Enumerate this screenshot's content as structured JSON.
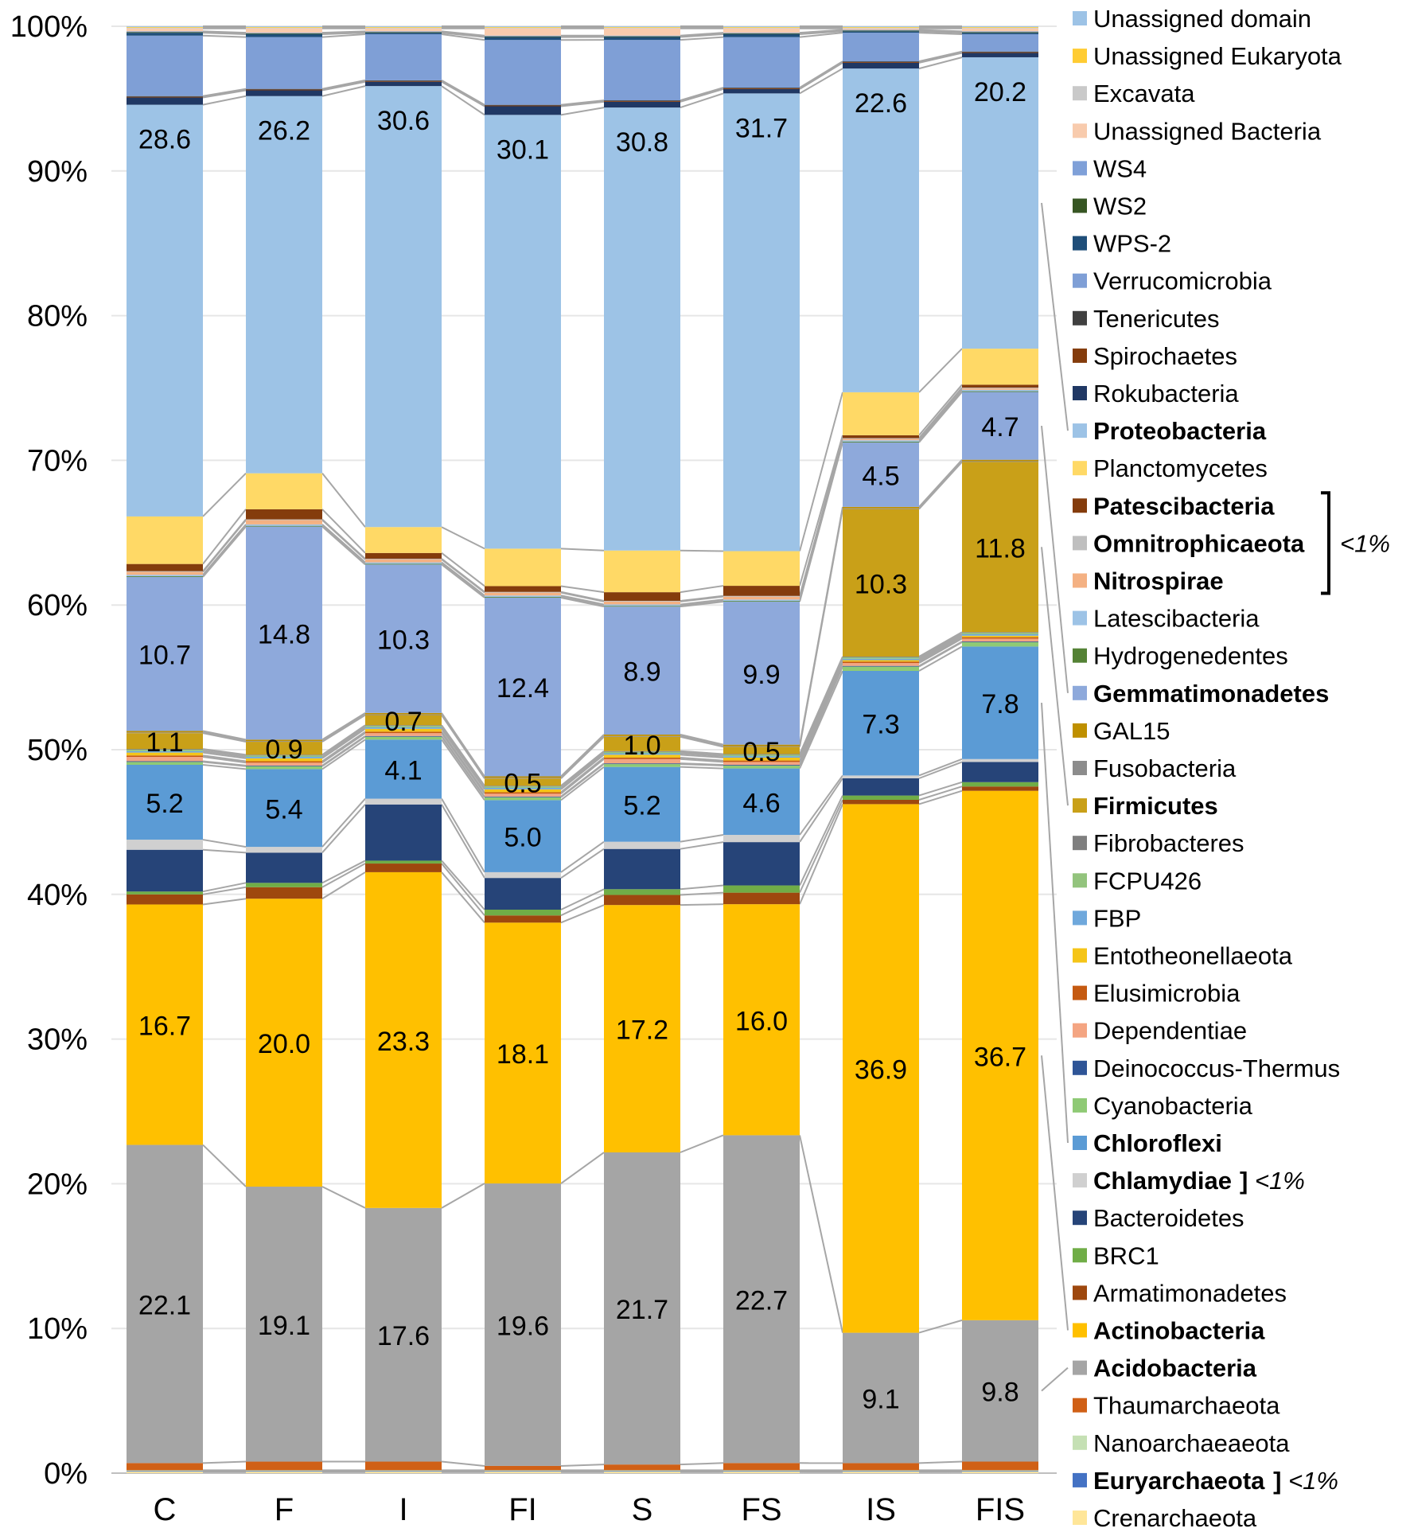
{
  "chart_data": {
    "type": "stacked-bar",
    "title": "",
    "xlabel": "",
    "ylabel": "",
    "ylim": [
      0,
      100
    ],
    "y_ticks": [
      "0%",
      "10%",
      "20%",
      "30%",
      "40%",
      "50%",
      "60%",
      "70%",
      "80%",
      "90%",
      "100%"
    ],
    "categories": [
      "C",
      "F",
      "I",
      "FI",
      "S",
      "FS",
      "IS",
      "FIS"
    ],
    "series": [
      {
        "name": "Crenarchaeota",
        "color": "#FFE699",
        "bold": false,
        "values": [
          0.1,
          0.1,
          0.1,
          0.1,
          0.1,
          0.1,
          0.1,
          0.1
        ]
      },
      {
        "name": "Euryarchaeota",
        "color": "#4472C4",
        "bold": true,
        "values": [
          0.05,
          0.05,
          0.05,
          0.05,
          0.05,
          0.05,
          0.05,
          0.05
        ]
      },
      {
        "name": "Nanoarchaeaeota",
        "color": "#C5E0B4",
        "bold": false,
        "values": [
          0.05,
          0.05,
          0.05,
          0.05,
          0.05,
          0.05,
          0.05,
          0.05
        ]
      },
      {
        "name": "Thaumarchaeota",
        "color": "#D06016",
        "bold": false,
        "values": [
          0.5,
          0.6,
          0.6,
          0.3,
          0.4,
          0.5,
          0.5,
          0.6
        ]
      },
      {
        "name": "Acidobacteria",
        "color": "#A5A5A5",
        "bold": true,
        "values": [
          22.1,
          19.1,
          17.6,
          19.6,
          21.7,
          22.7,
          9.1,
          9.8
        ]
      },
      {
        "name": "Actinobacteria",
        "color": "#FFC000",
        "bold": true,
        "values": [
          16.7,
          20.0,
          23.3,
          18.1,
          17.2,
          16.0,
          36.9,
          36.7
        ]
      },
      {
        "name": "Armatimonadetes",
        "color": "#9E480E",
        "bold": false,
        "values": [
          0.7,
          0.8,
          0.6,
          0.5,
          0.7,
          0.8,
          0.3,
          0.3
        ]
      },
      {
        "name": "BRC1",
        "color": "#70AD47",
        "bold": false,
        "values": [
          0.2,
          0.3,
          0.2,
          0.4,
          0.4,
          0.5,
          0.3,
          0.3
        ]
      },
      {
        "name": "Bacteroidetes",
        "color": "#264478",
        "bold": false,
        "values": [
          2.9,
          2.1,
          3.9,
          2.2,
          2.8,
          3.0,
          1.2,
          1.4
        ]
      },
      {
        "name": "Chlamydiae",
        "color": "#D0D0D0",
        "bold": true,
        "values": [
          0.7,
          0.4,
          0.4,
          0.4,
          0.5,
          0.5,
          0.2,
          0.2
        ]
      },
      {
        "name": "Chloroflexi",
        "color": "#5B9BD5",
        "bold": true,
        "values": [
          5.2,
          5.4,
          4.1,
          5.0,
          5.2,
          4.6,
          7.3,
          7.8
        ]
      },
      {
        "name": "Cyanobacteria",
        "color": "#8FCA75",
        "bold": false,
        "values": [
          0.2,
          0.2,
          0.2,
          0.2,
          0.2,
          0.2,
          0.3,
          0.3
        ]
      },
      {
        "name": "Deinococcus-Thermus",
        "color": "#2F5597",
        "bold": false,
        "values": [
          0.05,
          0.05,
          0.05,
          0.05,
          0.05,
          0.05,
          0.05,
          0.05
        ]
      },
      {
        "name": "Dependentiae",
        "color": "#F4A582",
        "bold": false,
        "values": [
          0.3,
          0.2,
          0.2,
          0.2,
          0.3,
          0.2,
          0.2,
          0.2
        ]
      },
      {
        "name": "Elusimicrobia",
        "color": "#C55A11",
        "bold": false,
        "values": [
          0.1,
          0.1,
          0.1,
          0.1,
          0.1,
          0.1,
          0.1,
          0.1
        ]
      },
      {
        "name": "Entotheonellaeota",
        "color": "#F5C518",
        "bold": false,
        "values": [
          0.2,
          0.2,
          0.2,
          0.2,
          0.2,
          0.2,
          0.1,
          0.1
        ]
      },
      {
        "name": "FBP",
        "color": "#6FA8DC",
        "bold": false,
        "values": [
          0.1,
          0.1,
          0.1,
          0.1,
          0.1,
          0.1,
          0.1,
          0.1
        ]
      },
      {
        "name": "FCPU426",
        "color": "#93C47D",
        "bold": false,
        "values": [
          0.1,
          0.1,
          0.1,
          0.1,
          0.1,
          0.1,
          0.1,
          0.1
        ]
      },
      {
        "name": "Fibrobacteres",
        "color": "#7F7F7F",
        "bold": false,
        "values": [
          0.05,
          0.05,
          0.05,
          0.05,
          0.05,
          0.05,
          0.05,
          0.05
        ]
      },
      {
        "name": "Firmicutes",
        "color": "#C9A018",
        "bold": true,
        "values": [
          1.1,
          0.9,
          0.7,
          0.5,
          1.0,
          0.5,
          10.3,
          11.8
        ]
      },
      {
        "name": "Fusobacteria",
        "color": "#8C8C8C",
        "bold": false,
        "values": [
          0.05,
          0.05,
          0.05,
          0.05,
          0.05,
          0.05,
          0.05,
          0.05
        ]
      },
      {
        "name": "GAL15",
        "color": "#BF9000",
        "bold": false,
        "values": [
          0.1,
          0.1,
          0.1,
          0.1,
          0.1,
          0.1,
          0.1,
          0.1
        ]
      },
      {
        "name": "Gemmatimonadetes",
        "color": "#8EA9DB",
        "bold": true,
        "values": [
          10.7,
          14.8,
          10.3,
          12.4,
          8.9,
          9.9,
          4.5,
          4.7
        ]
      },
      {
        "name": "Hydrogenedentes",
        "color": "#548235",
        "bold": false,
        "values": [
          0.05,
          0.05,
          0.05,
          0.05,
          0.05,
          0.05,
          0.05,
          0.05
        ]
      },
      {
        "name": "Latescibacteria",
        "color": "#9DC3E6",
        "bold": false,
        "values": [
          0.1,
          0.1,
          0.1,
          0.1,
          0.1,
          0.1,
          0.1,
          0.1
        ]
      },
      {
        "name": "Nitrospirae",
        "color": "#F4B183",
        "bold": true,
        "values": [
          0.2,
          0.3,
          0.2,
          0.2,
          0.2,
          0.2,
          0.1,
          0.1
        ]
      },
      {
        "name": "Omnitrophicaeota",
        "color": "#BFBFBF",
        "bold": true,
        "values": [
          0.05,
          0.05,
          0.05,
          0.05,
          0.05,
          0.05,
          0.05,
          0.05
        ]
      },
      {
        "name": "Patescibacteria",
        "color": "#843C0C",
        "bold": true,
        "values": [
          0.5,
          0.7,
          0.4,
          0.4,
          0.6,
          0.7,
          0.2,
          0.2
        ]
      },
      {
        "name": "Planctomycetes",
        "color": "#FFD966",
        "bold": false,
        "values": [
          3.3,
          2.5,
          1.8,
          2.6,
          2.9,
          2.4,
          3.0,
          2.5
        ]
      },
      {
        "name": "Proteobacteria",
        "color": "#9DC3E6",
        "bold": true,
        "values": [
          28.6,
          26.2,
          30.6,
          30.1,
          30.8,
          31.7,
          22.6,
          20.2
        ]
      },
      {
        "name": "Rokubacteria",
        "color": "#203864",
        "bold": false,
        "values": [
          0.5,
          0.4,
          0.3,
          0.6,
          0.4,
          0.3,
          0.4,
          0.3
        ]
      },
      {
        "name": "Spirochaetes",
        "color": "#843C0C",
        "bold": false,
        "values": [
          0.05,
          0.05,
          0.05,
          0.05,
          0.05,
          0.05,
          0.05,
          0.05
        ]
      },
      {
        "name": "Tenericutes",
        "color": "#404040",
        "bold": false,
        "values": [
          0.05,
          0.05,
          0.05,
          0.05,
          0.05,
          0.05,
          0.05,
          0.05
        ]
      },
      {
        "name": "Verrucomicrobia",
        "color": "#7F9FD6",
        "bold": false,
        "values": [
          4.2,
          3.6,
          3.2,
          4.5,
          4.2,
          3.5,
          2.0,
          1.2
        ]
      },
      {
        "name": "WPS-2",
        "color": "#1F4E79",
        "bold": false,
        "values": [
          0.2,
          0.2,
          0.1,
          0.2,
          0.2,
          0.2,
          0.1,
          0.1
        ]
      },
      {
        "name": "WS2",
        "color": "#375623",
        "bold": false,
        "values": [
          0.05,
          0.05,
          0.05,
          0.05,
          0.05,
          0.05,
          0.05,
          0.05
        ]
      },
      {
        "name": "WS4",
        "color": "#7FA0D8",
        "bold": false,
        "values": [
          0.05,
          0.05,
          0.05,
          0.05,
          0.05,
          0.05,
          0.05,
          0.05
        ]
      },
      {
        "name": "Unassigned Bacteria",
        "color": "#F8CBAD",
        "bold": false,
        "values": [
          0.2,
          0.3,
          0.2,
          0.5,
          0.5,
          0.3,
          0.1,
          0.2
        ]
      },
      {
        "name": "Excavata",
        "color": "#C9C9C9",
        "bold": false,
        "values": [
          0.05,
          0.05,
          0.05,
          0.05,
          0.05,
          0.05,
          0.05,
          0.05
        ]
      },
      {
        "name": "Unassigned Eukaryota",
        "color": "#FFCC33",
        "bold": false,
        "values": [
          0.05,
          0.05,
          0.05,
          0.05,
          0.05,
          0.05,
          0.05,
          0.05
        ]
      },
      {
        "name": "Unassigned domain",
        "color": "#9DC3E6",
        "bold": false,
        "values": [
          0.05,
          0.05,
          0.05,
          0.05,
          0.05,
          0.05,
          0.05,
          0.05
        ]
      }
    ],
    "labeled_series": [
      "Acidobacteria",
      "Actinobacteria",
      "Chloroflexi",
      "Firmicutes",
      "Gemmatimonadetes",
      "Proteobacteria"
    ],
    "legend": {
      "placement": "right",
      "order": [
        "Unassigned domain",
        "Unassigned Eukaryota",
        "Excavata",
        "Unassigned Bacteria",
        "WS4",
        "WS2",
        "WPS-2",
        "Verrucomicrobia",
        "Tenericutes",
        "Spirochaetes",
        "Rokubacteria",
        "Proteobacteria",
        "Planctomycetes",
        "Patescibacteria",
        "Omnitrophicaeota",
        "Nitrospirae",
        "Latescibacteria",
        "Hydrogenedentes",
        "Gemmatimonadetes",
        "GAL15",
        "Fusobacteria",
        "Firmicutes",
        "Fibrobacteres",
        "FCPU426",
        "FBP",
        "Entotheonellaeota",
        "Elusimicrobia",
        "Dependentiae",
        "Deinococcus-Thermus",
        "Cyanobacteria",
        "Chloroflexi",
        "Chlamydiae",
        "Bacteroidetes",
        "BRC1",
        "Armatimonadetes",
        "Actinobacteria",
        "Acidobacteria",
        "Thaumarchaeota",
        "Nanoarchaeaeota",
        "Euryarchaeota",
        "Crenarchaeota"
      ],
      "annotations": [
        {
          "after": "Chlamydiae",
          "text": "] <1%"
        },
        {
          "after": "Euryarchaeota",
          "text": "] <1%"
        },
        {
          "group": [
            "Patescibacteria",
            "Omnitrophicaeota",
            "Nitrospirae"
          ],
          "text": "<1%"
        }
      ]
    }
  }
}
